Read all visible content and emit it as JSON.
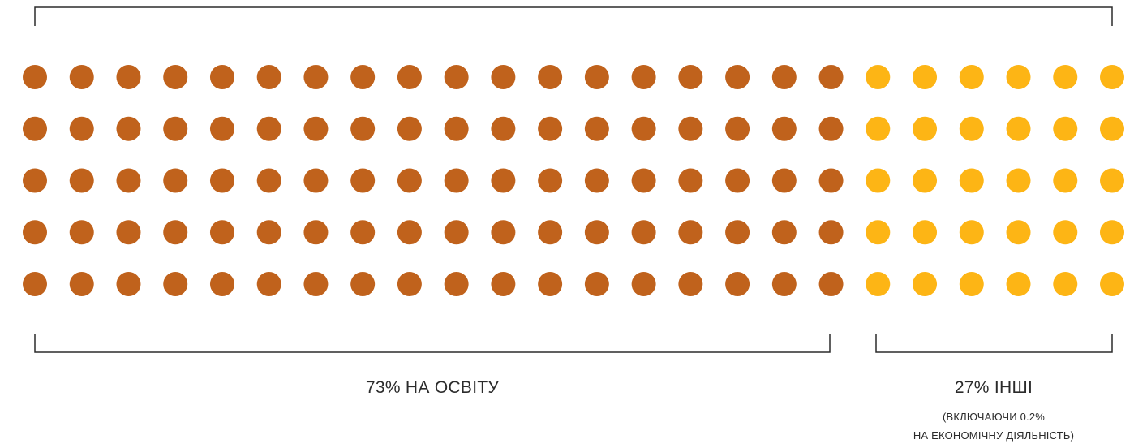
{
  "chart_data": {
    "type": "dot-matrix",
    "rows": 5,
    "columns": 24,
    "segments": [
      {
        "label": "73% НА ОСВІТУ",
        "percent": 73,
        "columns": 18,
        "color": "#C0621C"
      },
      {
        "label": "27% ІНШІ",
        "percent": 27,
        "columns": 6,
        "color": "#FDB515",
        "note_lines": [
          "(ВКЛЮЧАЮЧИ 0.2%",
          "НА ЕКОНОМІЧНУ ДІЯЛЬНІСТЬ)"
        ]
      }
    ]
  }
}
